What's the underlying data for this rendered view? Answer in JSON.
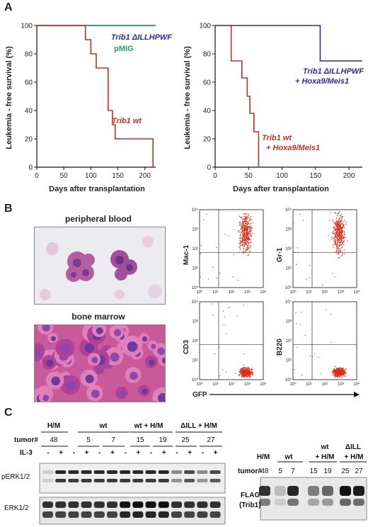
{
  "panels": {
    "a": "A",
    "b": "B",
    "c": "C"
  },
  "panel_a": {
    "ylabel": "Leukemia - free survival (%)",
    "xlabel": "Days after transplantation",
    "yticks": [
      "0",
      "20",
      "40",
      "60",
      "80",
      "100"
    ],
    "xticks": [
      "0",
      "50",
      "100",
      "150",
      "200"
    ],
    "left_labels": {
      "mut": "Trib1 ΔILLHPWF",
      "pmig": "pMIG",
      "wt": "Trib1 wt"
    },
    "right_labels": {
      "mut1": "Trib1 ΔILLHPWF",
      "mut2": "+ Hoxa9/Meis1",
      "wt1": "Trib1 wt",
      "wt2": "+ Hoxa9/Meis1"
    },
    "colors": {
      "mut": "#2b2b9a",
      "pmig": "#1fa35a",
      "wt": "#c0321f",
      "teal": "#2a8a8a"
    }
  },
  "panel_b": {
    "pb_title": "peripheral blood",
    "bm_title": "bone marrow",
    "flow": [
      "Mac-1",
      "Gr-1",
      "CD3",
      "B220"
    ],
    "flow_ticks": [
      "10⁰",
      "10¹",
      "10²",
      "10³",
      "10⁴"
    ],
    "gfp": "GFP"
  },
  "chart_data": [
    {
      "type": "line",
      "title": "",
      "xlabel": "Days after transplantation",
      "ylabel": "Leukemia - free survival (%)",
      "xlim": [
        0,
        220
      ],
      "ylim": [
        0,
        100
      ],
      "series": [
        {
          "name": "Trib1 ΔILLHPWF",
          "x": [
            0,
            220
          ],
          "y": [
            100,
            100
          ]
        },
        {
          "name": "pMIG",
          "x": [
            0,
            220
          ],
          "y": [
            100,
            100
          ]
        },
        {
          "name": "Trib1 wt",
          "x": [
            0,
            90,
            90,
            100,
            100,
            110,
            110,
            132,
            132,
            140,
            140,
            145,
            145,
            215,
            215
          ],
          "y": [
            100,
            100,
            90,
            90,
            80,
            80,
            70,
            70,
            40,
            40,
            30,
            30,
            20,
            20,
            0
          ]
        }
      ]
    },
    {
      "type": "line",
      "title": "",
      "xlabel": "Days after transplantation",
      "ylabel": "Leukemia - free survival (%)",
      "xlim": [
        0,
        220
      ],
      "ylim": [
        0,
        100
      ],
      "series": [
        {
          "name": "Trib1 ΔILLHPWF + Hoxa9/Meis1",
          "x": [
            0,
            157,
            157,
            220
          ],
          "y": [
            100,
            100,
            75,
            75
          ]
        },
        {
          "name": "Trib1 wt + Hoxa9/Meis1",
          "x": [
            0,
            24,
            24,
            40,
            40,
            48,
            48,
            52,
            52,
            58,
            58,
            65,
            65
          ],
          "y": [
            100,
            100,
            75,
            75,
            63,
            63,
            50,
            50,
            38,
            38,
            25,
            25,
            0
          ]
        }
      ]
    }
  ],
  "panel_c": {
    "groups": [
      "H/M",
      "wt",
      "wt + H/M",
      "ΔILL + H/M"
    ],
    "tumor_label": "tumor#",
    "tumors": [
      "48",
      "5",
      "7",
      "15",
      "19",
      "25",
      "27"
    ],
    "il3_label": "IL-3",
    "minus": "-",
    "plus": "+",
    "perk": "pERK1/2",
    "erk": "ERK1/2",
    "right": {
      "hm": "H/M",
      "wt": "wt",
      "wthm1": "wt",
      "wthm2": "+ H/M",
      "dill1": "ΔILL",
      "dill2": "+ H/M",
      "tumor_label": "tumor#",
      "tumors": [
        "48",
        "5",
        "7",
        "15",
        "19",
        "25",
        "27"
      ],
      "flag1": "FLAG",
      "flag2": "(Trib1)"
    }
  }
}
